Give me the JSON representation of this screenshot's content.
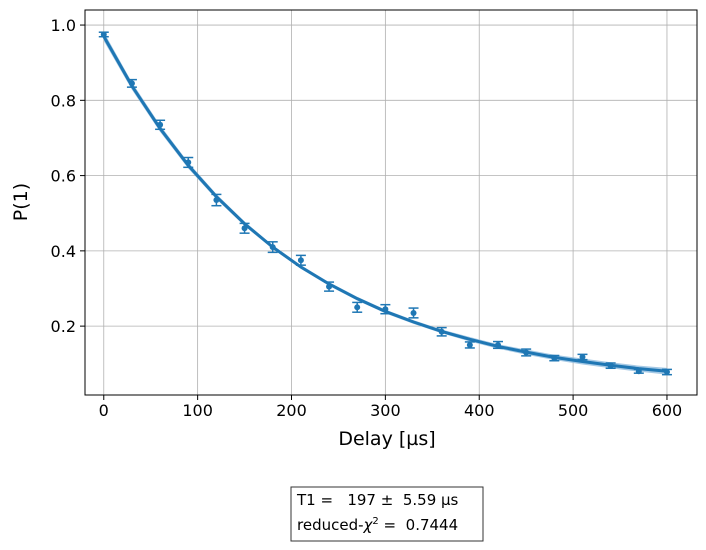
{
  "chart_data": {
    "type": "scatter",
    "xlabel": "Delay [µs]",
    "ylabel": "P(1)",
    "x": [
      0,
      30,
      60,
      90,
      120,
      150,
      180,
      210,
      240,
      270,
      300,
      330,
      360,
      390,
      420,
      450,
      480,
      510,
      540,
      570,
      600
    ],
    "series": [
      {
        "type": "scatter",
        "color": "#1f77b4",
        "values": [
          0.975,
          0.845,
          0.735,
          0.635,
          0.535,
          0.46,
          0.41,
          0.375,
          0.305,
          0.25,
          0.245,
          0.235,
          0.185,
          0.15,
          0.15,
          0.13,
          0.115,
          0.118,
          0.095,
          0.08,
          0.078
        ],
        "errors": [
          0.006,
          0.01,
          0.012,
          0.013,
          0.015,
          0.013,
          0.014,
          0.013,
          0.012,
          0.013,
          0.012,
          0.013,
          0.011,
          0.008,
          0.009,
          0.009,
          0.007,
          0.007,
          0.007,
          0.005,
          0.007
        ]
      },
      {
        "type": "line",
        "color": "#1f77b4",
        "band_color": "#8fbcdf",
        "values": [
          0.97,
          0.838,
          0.725,
          0.627,
          0.544,
          0.472,
          0.41,
          0.357,
          0.312,
          0.273,
          0.239,
          0.211,
          0.186,
          0.165,
          0.146,
          0.131,
          0.117,
          0.106,
          0.096,
          0.087,
          0.08
        ],
        "band_lower": [
          0.958,
          0.828,
          0.716,
          0.619,
          0.537,
          0.466,
          0.405,
          0.352,
          0.307,
          0.268,
          0.234,
          0.206,
          0.181,
          0.159,
          0.14,
          0.124,
          0.11,
          0.098,
          0.088,
          0.079,
          0.071
        ],
        "band_upper": [
          0.982,
          0.848,
          0.734,
          0.635,
          0.551,
          0.478,
          0.415,
          0.362,
          0.317,
          0.278,
          0.244,
          0.216,
          0.191,
          0.171,
          0.152,
          0.138,
          0.124,
          0.114,
          0.104,
          0.095,
          0.089
        ]
      }
    ],
    "xlim": [
      -20,
      632
    ],
    "xticks": [
      0,
      100,
      200,
      300,
      400,
      500,
      600
    ],
    "ylim": [
      0.017,
      1.04
    ],
    "yticks": [
      0.2,
      0.4,
      0.6,
      0.8,
      {
        "value": 1,
        "label": "1.0"
      }
    ],
    "grid": true,
    "annotation": {
      "line1": "T1 =   197 ±  5.59 µs",
      "line2_prefix": "reduced-",
      "line2_symbol": "χ",
      "line2_sup": "2",
      "line2_suffix": " =  0.7444"
    }
  }
}
